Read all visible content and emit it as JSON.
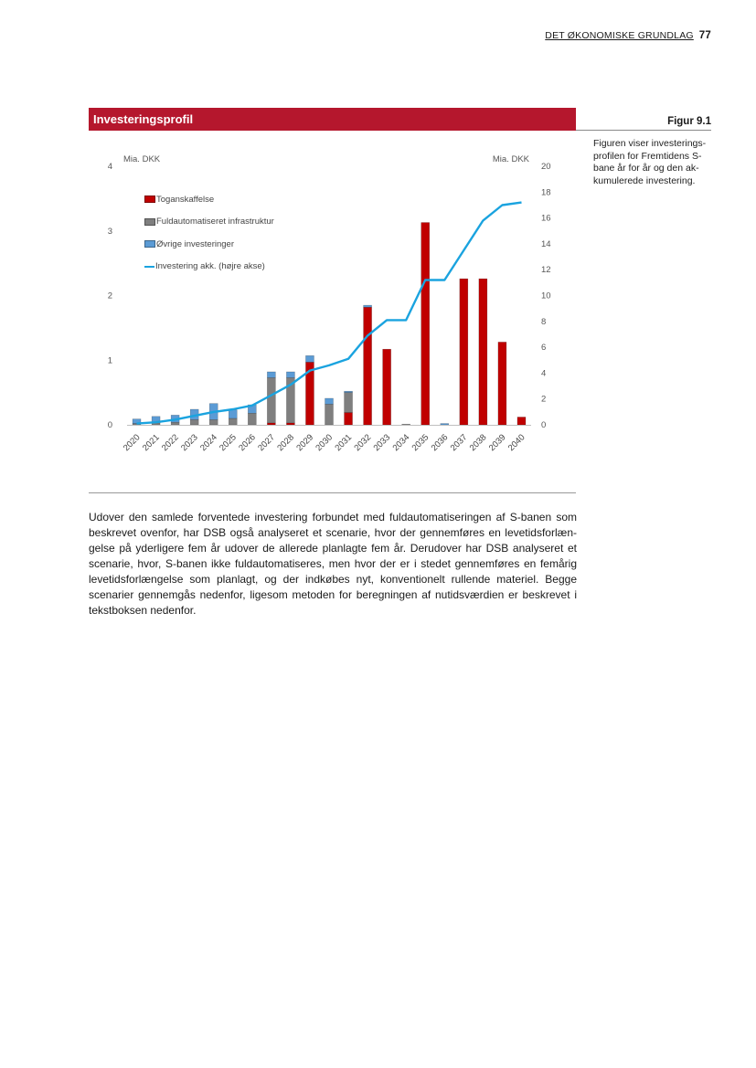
{
  "running_head": {
    "section": "DET ØKONOMISKE GRUNDLAG",
    "page_number": "77"
  },
  "figure": {
    "header_title": "Investeringsprofil",
    "number": "Figur 9.1",
    "caption": "Figuren viser investerings­profilen for Fremtidens S-bane år for år og den ak­kumulerede investering."
  },
  "body": {
    "paragraph": "Udover den samlede forventede investering forbundet med fuldautomatiseringen af S-banen som beskrevet ovenfor, har DSB også analyseret et scenarie, hvor der gennemføres en levetidsforlæn­gelse på yderligere fem år udover de allerede planlagte fem år. Derudover har DSB analyseret et scenarie, hvor, S-banen ikke fuldautomatiseres, men hvor der er i stedet gennemføres en femårig levetidsforlængelse som planlagt, og der indkøbes nyt, konventionelt rullende materiel. Begge scenarier gennemgås nedenfor, ligesom metoden for beregningen af nutidsværdien er beskrevet i tekstboksen nedenfor."
  },
  "colors": {
    "brand_red": "#b5172d",
    "toganskaffelse": "#c00000",
    "infrastruktur": "#7f7f7f",
    "ovrige": "#5b9bd5",
    "akkumuleret": "#1aa3df"
  },
  "chart_data": {
    "type": "bar",
    "stacked": true,
    "categories": [
      "2020",
      "2021",
      "2022",
      "2023",
      "2024",
      "2025",
      "2026",
      "2027",
      "2028",
      "2029",
      "2030",
      "2031",
      "2032",
      "2033",
      "2034",
      "2035",
      "2036",
      "2037",
      "2038",
      "2039",
      "2040"
    ],
    "series": [
      {
        "name": "Toganskaffelse",
        "axis": "left",
        "color": "#c00000",
        "values": [
          0,
          0,
          0,
          0,
          0,
          0,
          0,
          0.03,
          0.03,
          0.97,
          0,
          0.19,
          1.82,
          1.17,
          0,
          3.13,
          0,
          2.26,
          2.26,
          1.28,
          0.12
        ]
      },
      {
        "name": "Fuldautomatiseret infrastruktur",
        "axis": "left",
        "color": "#7f7f7f",
        "values": [
          0.02,
          0.03,
          0.04,
          0.08,
          0.08,
          0.1,
          0.18,
          0.7,
          0.7,
          0,
          0.32,
          0.31,
          0,
          0,
          0.01,
          0,
          0,
          0,
          0,
          0,
          0
        ]
      },
      {
        "name": "Øvrige investeringer",
        "axis": "left",
        "color": "#5b9bd5",
        "values": [
          0.07,
          0.1,
          0.11,
          0.16,
          0.25,
          0.13,
          0.13,
          0.09,
          0.09,
          0.1,
          0.09,
          0.02,
          0.03,
          0,
          0,
          0,
          0.02,
          0,
          0,
          0,
          0
        ]
      },
      {
        "name": "Investering akk. (højre akse)",
        "axis": "right",
        "type": "line",
        "color": "#1aa3df",
        "values": [
          0.1,
          0.2,
          0.4,
          0.7,
          1.0,
          1.2,
          1.5,
          2.3,
          3.1,
          4.2,
          4.6,
          5.1,
          6.9,
          8.1,
          8.1,
          11.2,
          11.2,
          13.5,
          15.8,
          17.0,
          17.2
        ]
      }
    ],
    "left_axis": {
      "label": "Mia. DKK",
      "range": [
        0,
        4
      ],
      "ticks": [
        "0",
        "1",
        "2",
        "3",
        "4"
      ]
    },
    "right_axis": {
      "label": "Mia. DKK",
      "range": [
        0,
        20
      ],
      "ticks": [
        "0",
        "2",
        "4",
        "6",
        "8",
        "10",
        "12",
        "14",
        "16",
        "18",
        "20"
      ]
    },
    "grid": false,
    "legend_position": "top-left"
  }
}
